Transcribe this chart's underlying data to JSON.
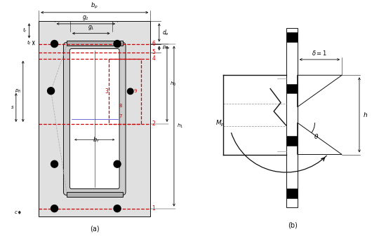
{
  "fig_width": 5.5,
  "fig_height": 3.44,
  "dpi": 100,
  "bg_color": "#ffffff",
  "red": "#cc0000",
  "blue": "#3333cc",
  "gray": "#999999",
  "dk": "#111111",
  "lgray": "#cccccc"
}
